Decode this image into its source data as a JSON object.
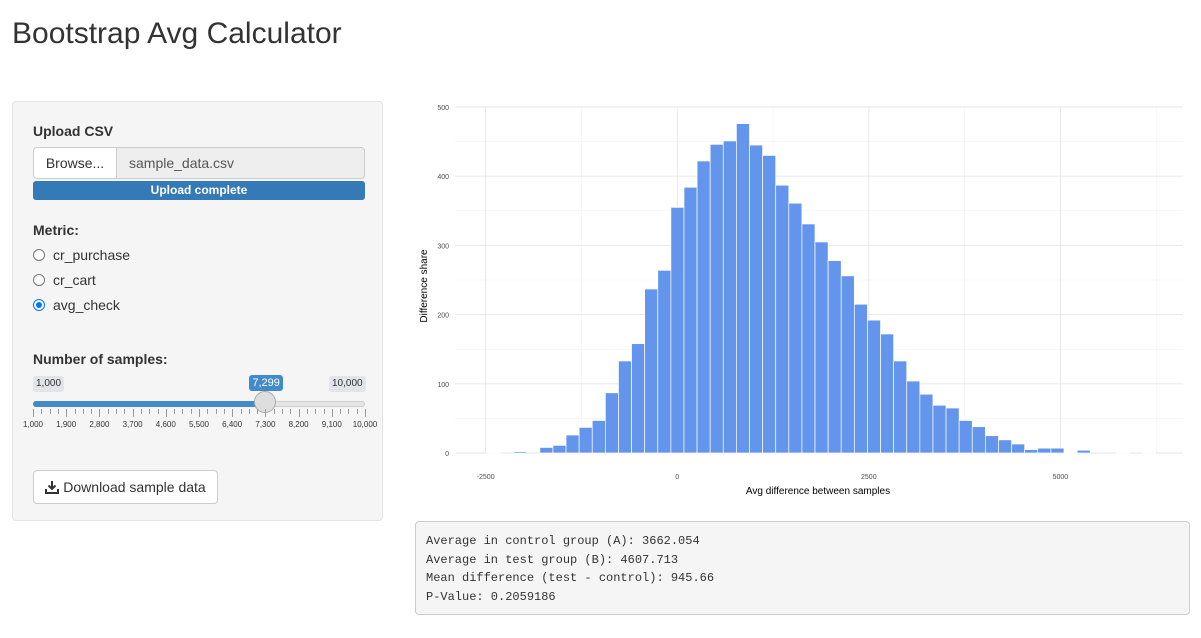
{
  "page": {
    "title": "Bootstrap Avg Calculator"
  },
  "upload": {
    "label": "Upload CSV",
    "browse_label": "Browse...",
    "file_name": "sample_data.csv",
    "status": "Upload complete"
  },
  "metric": {
    "label": "Metric:",
    "options": [
      {
        "label": "cr_purchase",
        "checked": false
      },
      {
        "label": "cr_cart",
        "checked": false
      },
      {
        "label": "avg_check",
        "checked": true
      }
    ]
  },
  "samples": {
    "label": "Number of samples:",
    "min_label": "1,000",
    "max_label": "10,000",
    "value_label": "7,299",
    "min": 1000,
    "max": 10000,
    "value": 7299,
    "tick_labels": [
      "1,000",
      "1,900",
      "2,800",
      "3,700",
      "4,600",
      "5,500",
      "6,400",
      "7,300",
      "8,200",
      "9,100",
      "10,000"
    ]
  },
  "download": {
    "label": "Download sample data",
    "icon": "download-icon"
  },
  "chart_data": {
    "type": "bar",
    "xlabel": "Avg difference between samples",
    "ylabel": "Difference share",
    "xlim": [
      -2900,
      6600
    ],
    "ylim": [
      0,
      500
    ],
    "x_ticks": [
      -2500,
      0,
      2500,
      5000
    ],
    "x_tick_labels": [
      "-2500",
      "0",
      "2500",
      "5000"
    ],
    "y_ticks": [
      0,
      100,
      200,
      300,
      400,
      500
    ],
    "y_tick_labels": [
      "0",
      "100",
      "200",
      "300",
      "400",
      "500"
    ],
    "grid": true,
    "bar_color": "#6495ed",
    "bin_width": 171,
    "bin_starts": [
      -2477,
      -2306,
      -2135,
      -1964,
      -1793,
      -1622,
      -1451,
      -1280,
      -1109,
      -938,
      -767,
      -596,
      -425,
      -254,
      -83,
      88,
      259,
      430,
      601,
      772,
      943,
      1114,
      1285,
      1456,
      1627,
      1798,
      1969,
      2140,
      2311,
      2482,
      2653,
      2824,
      2995,
      3166,
      3337,
      3508,
      3679,
      3850,
      4021,
      4192,
      4363,
      4534,
      4705,
      4876,
      5047,
      5218,
      5389,
      5560,
      5731,
      5902,
      6073
    ],
    "values": [
      1,
      0,
      2,
      0,
      8,
      11,
      26,
      37,
      47,
      87,
      133,
      158,
      237,
      264,
      355,
      384,
      422,
      446,
      451,
      476,
      445,
      430,
      387,
      361,
      331,
      305,
      278,
      256,
      215,
      192,
      172,
      133,
      104,
      85,
      69,
      65,
      47,
      38,
      25,
      19,
      13,
      5,
      7,
      7,
      1,
      4,
      0,
      0,
      1,
      0,
      1
    ]
  },
  "results": {
    "lines": [
      "Average in control group (A): 3662.054",
      "Average in test group (B): 4607.713",
      "Mean difference (test - control): 945.66",
      "P-Value: 0.2059186"
    ]
  }
}
